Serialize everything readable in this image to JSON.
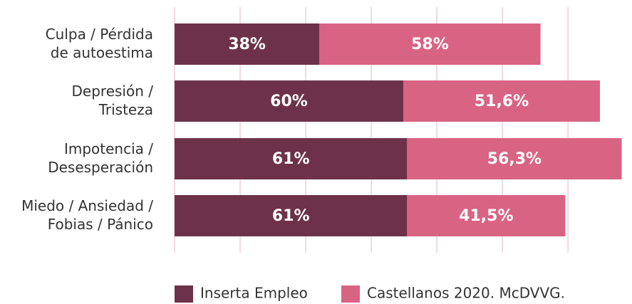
{
  "chart_data": {
    "type": "stacked-barh",
    "categories": [
      [
        "Culpa / Pérdida",
        "de autoestima"
      ],
      [
        "Depresión /",
        "Tristeza"
      ],
      [
        "Impotencia /",
        "Desesperación"
      ],
      [
        "Miedo / Ansiedad /",
        "Fobias / Pánico"
      ]
    ],
    "series": [
      {
        "name": "Inserta Empleo",
        "color": "#6d3249",
        "values": [
          38,
          60,
          61,
          61
        ],
        "value_labels": [
          "38%",
          "60%",
          "61%",
          "61%"
        ]
      },
      {
        "name": "Castellanos 2020. McDVVG.",
        "color": "#d96383",
        "values": [
          58,
          51.6,
          56.3,
          41.5
        ],
        "value_labels": [
          "58%",
          "51,6%",
          "56,3%",
          "41,5%"
        ]
      }
    ],
    "xlim": [
      0,
      120
    ],
    "xticks": [
      0,
      17.2,
      34.4,
      51.6,
      68.8,
      86,
      103.2
    ],
    "grid": true,
    "gridColor": "#e8b5c4"
  }
}
